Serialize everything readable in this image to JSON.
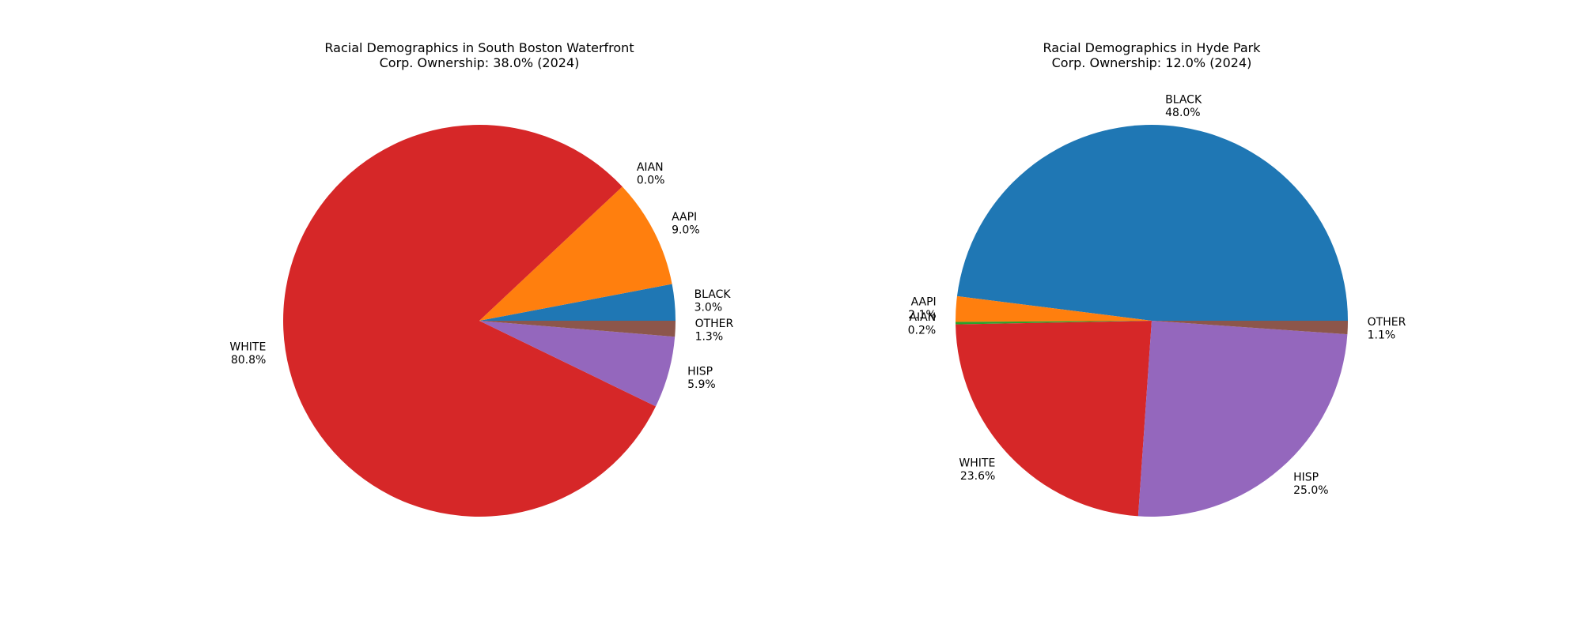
{
  "chart_data": [
    {
      "type": "pie",
      "title": "Racial Demographics in South Boston Waterfront\nCorp. Ownership: 38.0% (2024)",
      "start_angle_deg": 0,
      "direction": "counterclockwise",
      "slices": [
        {
          "label": "BLACK",
          "value": 3.0,
          "pct_text": "3.0%",
          "color": "#1f77b4"
        },
        {
          "label": "AAPI",
          "value": 9.0,
          "pct_text": "9.0%",
          "color": "#ff7f0e"
        },
        {
          "label": "AIAN",
          "value": 0.0,
          "pct_text": "0.0%",
          "color": "#2ca02c"
        },
        {
          "label": "WHITE",
          "value": 80.8,
          "pct_text": "80.8%",
          "color": "#d62728"
        },
        {
          "label": "HISP",
          "value": 5.9,
          "pct_text": "5.9%",
          "color": "#9467bd"
        },
        {
          "label": "OTHER",
          "value": 1.3,
          "pct_text": "1.3%",
          "color": "#8c564b"
        }
      ]
    },
    {
      "type": "pie",
      "title": "Racial Demographics in Hyde Park\nCorp. Ownership: 12.0% (2024)",
      "start_angle_deg": 0,
      "direction": "counterclockwise",
      "slices": [
        {
          "label": "BLACK",
          "value": 48.0,
          "pct_text": "48.0%",
          "color": "#1f77b4"
        },
        {
          "label": "AAPI",
          "value": 2.1,
          "pct_text": "2.1%",
          "color": "#ff7f0e"
        },
        {
          "label": "AIAN",
          "value": 0.2,
          "pct_text": "0.2%",
          "color": "#2ca02c"
        },
        {
          "label": "WHITE",
          "value": 23.6,
          "pct_text": "23.6%",
          "color": "#d62728"
        },
        {
          "label": "HISP",
          "value": 25.0,
          "pct_text": "25.0%",
          "color": "#9467bd"
        },
        {
          "label": "OTHER",
          "value": 1.1,
          "pct_text": "1.1%",
          "color": "#8c564b"
        }
      ]
    }
  ]
}
